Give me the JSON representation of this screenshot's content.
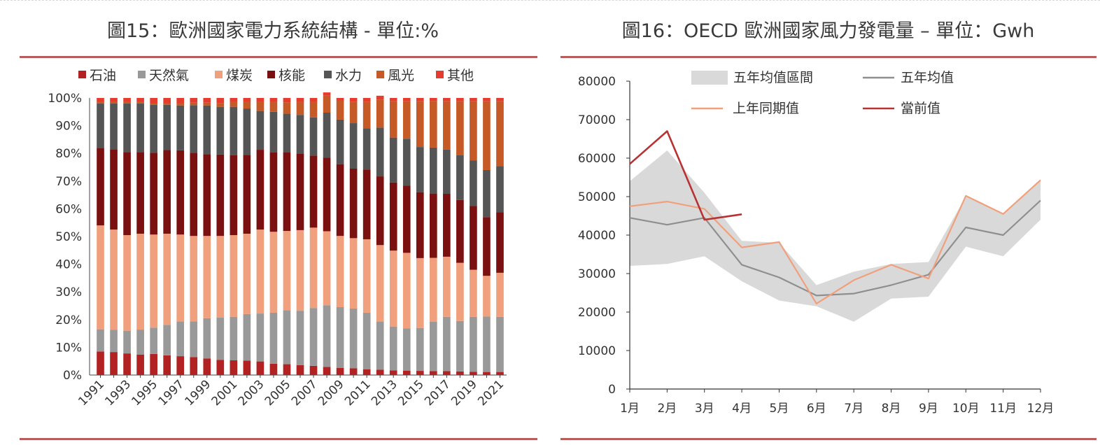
{
  "chart_data": [
    {
      "type": "bar",
      "stacked": true,
      "title": "圖15：歐洲國家電力系統結構 - 單位:%",
      "xlabel": "",
      "ylabel": "",
      "ylim": [
        0,
        100
      ],
      "y_ticks": [
        "0%",
        "10%",
        "20%",
        "30%",
        "40%",
        "50%",
        "60%",
        "70%",
        "80%",
        "90%",
        "100%"
      ],
      "x_tick_labels": [
        "1991",
        "1993",
        "1995",
        "1997",
        "1999",
        "2001",
        "2003",
        "2005",
        "2007",
        "2009",
        "2011",
        "2013",
        "2015",
        "2017",
        "2019",
        "2021"
      ],
      "legend_position": "top",
      "categories": [
        "1991",
        "1992",
        "1993",
        "1994",
        "1995",
        "1996",
        "1997",
        "1998",
        "1999",
        "2000",
        "2001",
        "2002",
        "2003",
        "2004",
        "2005",
        "2006",
        "2007",
        "2008",
        "2009",
        "2010",
        "2011",
        "2012",
        "2013",
        "2014",
        "2015",
        "2016",
        "2017",
        "2018",
        "2019",
        "2020",
        "2021"
      ],
      "series": [
        {
          "name": "石油",
          "color": "#b22222",
          "values": [
            8.5,
            8.3,
            7.8,
            7.4,
            7.6,
            7.1,
            6.8,
            6.5,
            6.0,
            5.5,
            5.3,
            5.2,
            4.9,
            4.1,
            3.9,
            3.6,
            3.3,
            2.9,
            2.6,
            2.4,
            2.1,
            1.9,
            1.7,
            1.6,
            1.5,
            1.4,
            1.4,
            1.3,
            1.2,
            1.1,
            1.1
          ]
        },
        {
          "name": "天然氣",
          "color": "#999999",
          "values": [
            8.0,
            8.0,
            8.2,
            9.0,
            9.5,
            11.0,
            12.5,
            12.9,
            14.5,
            15.2,
            15.7,
            16.8,
            17.3,
            18.4,
            19.5,
            19.6,
            20.9,
            22.3,
            21.9,
            21.6,
            20.4,
            17.4,
            15.8,
            15.2,
            15.5,
            17.8,
            19.6,
            18.2,
            19.8,
            20.0,
            19.9
          ]
        },
        {
          "name": "煤炭",
          "color": "#f0a07c",
          "values": [
            37.5,
            36.2,
            34.5,
            34.6,
            33.6,
            32.9,
            31.4,
            30.8,
            29.7,
            29.5,
            29.5,
            29.0,
            30.3,
            29.2,
            28.6,
            29.1,
            29.0,
            26.7,
            25.7,
            25.4,
            26.5,
            27.6,
            27.4,
            27.3,
            25.2,
            23.1,
            21.7,
            21.0,
            17.0,
            14.7,
            15.9
          ]
        },
        {
          "name": "核能",
          "color": "#7b1010",
          "values": [
            28.0,
            29.0,
            30.0,
            29.5,
            29.5,
            30.2,
            30.4,
            30.0,
            29.5,
            29.4,
            28.8,
            28.5,
            28.8,
            28.7,
            28.3,
            27.6,
            26.0,
            26.5,
            25.9,
            25.1,
            25.2,
            24.8,
            24.6,
            24.2,
            23.8,
            23.2,
            22.7,
            22.7,
            23.0,
            21.2,
            21.9
          ]
        },
        {
          "name": "水力",
          "color": "#555555",
          "values": [
            16.0,
            16.5,
            17.5,
            17.5,
            17.3,
            16.3,
            16.2,
            17.2,
            17.6,
            17.2,
            17.5,
            16.7,
            14.0,
            14.6,
            14.0,
            14.0,
            13.8,
            16.3,
            16.1,
            16.4,
            14.8,
            17.6,
            16.2,
            17.0,
            16.3,
            16.6,
            16.0,
            16.1,
            16.4,
            17.0,
            16.6
          ]
        },
        {
          "name": "風光",
          "color": "#c65a26",
          "values": [
            0.5,
            0.5,
            0.5,
            0.5,
            0.6,
            0.6,
            0.8,
            0.9,
            1.0,
            1.4,
            1.8,
            2.3,
            3.3,
            3.6,
            4.1,
            4.6,
            5.5,
            6.1,
            6.8,
            7.8,
            9.7,
            10.1,
            13.1,
            13.5,
            16.5,
            16.8,
            17.4,
            19.5,
            21.4,
            24.8,
            23.4
          ]
        },
        {
          "name": "其他",
          "color": "#e63c2e",
          "values": [
            1.5,
            1.5,
            1.5,
            1.5,
            1.9,
            1.9,
            1.9,
            1.7,
            1.7,
            1.8,
            1.4,
            1.5,
            1.4,
            1.4,
            1.6,
            1.5,
            1.5,
            1.2,
            1.0,
            1.3,
            1.3,
            1.4,
            1.2,
            1.2,
            1.2,
            1.1,
            1.2,
            1.2,
            1.2,
            1.2,
            1.2
          ]
        }
      ]
    },
    {
      "type": "line",
      "title": "圖16：OECD 歐洲國家風力發電量 – 單位：Gwh",
      "xlabel": "",
      "ylabel": "",
      "ylim": [
        0,
        80000
      ],
      "y_ticks": [
        "0",
        "10000",
        "20000",
        "30000",
        "40000",
        "50000",
        "60000",
        "70000",
        "80000"
      ],
      "categories": [
        "1月",
        "2月",
        "3月",
        "4月",
        "5月",
        "6月",
        "7月",
        "8月",
        "9月",
        "10月",
        "11月",
        "12月"
      ],
      "legend_position": "top",
      "band": {
        "name": "五年均值區間",
        "color": "#d9d9d9",
        "upper": [
          54000,
          62000,
          51000,
          38500,
          38000,
          27000,
          30500,
          32500,
          33000,
          50000,
          45500,
          54500
        ],
        "lower": [
          32000,
          32500,
          34500,
          28000,
          23000,
          21500,
          17500,
          23500,
          24000,
          37000,
          34500,
          44000
        ]
      },
      "series": [
        {
          "name": "五年均值",
          "color": "#8f8f8f",
          "values": [
            44500,
            42700,
            44500,
            32300,
            29000,
            24300,
            24800,
            27000,
            29700,
            42000,
            40000,
            49000
          ]
        },
        {
          "name": "上年同期值",
          "color": "#f0a07c",
          "values": [
            47500,
            48700,
            46800,
            36800,
            38200,
            22200,
            28300,
            32300,
            28700,
            50200,
            45500,
            54300
          ]
        },
        {
          "name": "當前值",
          "color": "#b83232",
          "values": [
            58500,
            67000,
            44000,
            45400,
            null,
            null,
            null,
            null,
            null,
            null,
            null,
            null
          ]
        }
      ]
    }
  ]
}
